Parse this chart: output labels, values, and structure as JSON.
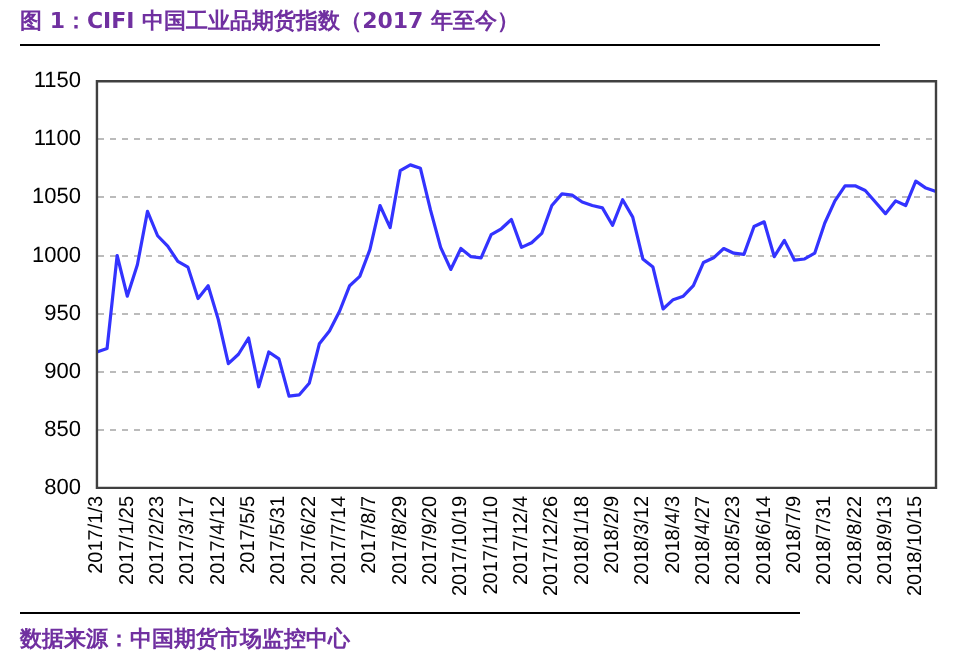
{
  "chart_data": {
    "type": "line",
    "title": "图 1：CIFI 中国工业品期货指数（2017 年至今）",
    "categories": [
      "2017/1/3",
      null,
      null,
      "2017/1/25",
      null,
      null,
      "2017/2/23",
      null,
      null,
      "2017/3/17",
      null,
      null,
      "2017/4/12",
      null,
      null,
      "2017/5/5",
      null,
      null,
      "2017/5/31",
      null,
      null,
      "2017/6/22",
      null,
      null,
      "2017/7/14",
      null,
      null,
      "2017/8/7",
      null,
      null,
      "2017/8/29",
      null,
      null,
      "2017/9/20",
      null,
      null,
      "2017/10/19",
      null,
      null,
      "2017/11/10",
      null,
      null,
      "2017/12/4",
      null,
      null,
      "2017/12/26",
      null,
      null,
      "2018/1/18",
      null,
      null,
      "2018/2/9",
      null,
      null,
      "2018/3/12",
      null,
      null,
      "2018/4/3",
      null,
      null,
      "2018/4/27",
      null,
      null,
      "2018/5/23",
      null,
      null,
      "2018/6/14",
      null,
      null,
      "2018/7/9",
      null,
      null,
      "2018/7/31",
      null,
      null,
      "2018/8/22",
      null,
      null,
      "2018/9/13",
      null,
      null,
      "2018/10/15",
      null,
      null
    ],
    "series": [
      {
        "color": "#3333ff",
        "values": [
          917,
          920,
          1000,
          965,
          992,
          1038,
          1017,
          1008,
          995,
          990,
          963,
          974,
          945,
          907,
          915,
          929,
          887,
          917,
          911,
          879,
          880,
          890,
          924,
          935,
          952,
          974,
          982,
          1005,
          1043,
          1024,
          1073,
          1078,
          1075,
          1039,
          1007,
          988,
          1006,
          999,
          998,
          1018,
          1023,
          1031,
          1007,
          1011,
          1019,
          1043,
          1053,
          1052,
          1046,
          1043,
          1041,
          1026,
          1048,
          1033,
          997,
          990,
          954,
          962,
          965,
          974,
          994,
          998,
          1006,
          1002,
          1001,
          1025,
          1029,
          999,
          1013,
          996,
          997,
          1002,
          1028,
          1047,
          1060,
          1060,
          1056,
          1046,
          1036,
          1047,
          1043,
          1064,
          1058,
          1055
        ]
      }
    ],
    "ylim": [
      800,
      1150
    ],
    "yticks": [
      800,
      850,
      900,
      950,
      1000,
      1050,
      1100,
      1150
    ],
    "grid": "y",
    "legend": false,
    "marker": "none",
    "line_style": "solid",
    "annotations": [
      "数据来源：中国期货市场监控中心"
    ]
  }
}
